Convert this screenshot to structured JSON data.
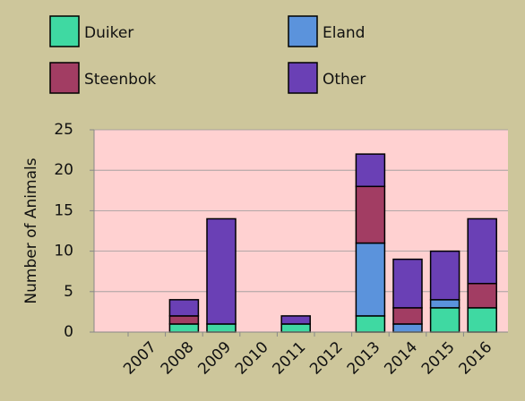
{
  "chart_data": {
    "type": "bar",
    "stacked": true,
    "y_axis_label": "Number of Animals",
    "categories": [
      "2007",
      "2008",
      "2009",
      "2010",
      "2011",
      "2012",
      "2013",
      "2014",
      "2015",
      "2016"
    ],
    "series": [
      {
        "name": "Duiker",
        "color": "#3fd9a2",
        "values": [
          0,
          1,
          1,
          0,
          1,
          0,
          2,
          0,
          3,
          3
        ]
      },
      {
        "name": "Eland",
        "color": "#5b93dc",
        "values": [
          0,
          0,
          0,
          0,
          0,
          0,
          9,
          1,
          1,
          0
        ]
      },
      {
        "name": "Steenbok",
        "color": "#a23d63",
        "values": [
          0,
          1,
          0,
          0,
          0,
          0,
          7,
          2,
          0,
          3
        ]
      },
      {
        "name": "Other",
        "color": "#6a40b5",
        "values": [
          0,
          2,
          13,
          0,
          1,
          0,
          4,
          6,
          6,
          8
        ]
      }
    ],
    "ylim": [
      0,
      25
    ],
    "yticks": [
      0,
      5,
      10,
      15,
      20,
      25
    ],
    "grid": true
  }
}
